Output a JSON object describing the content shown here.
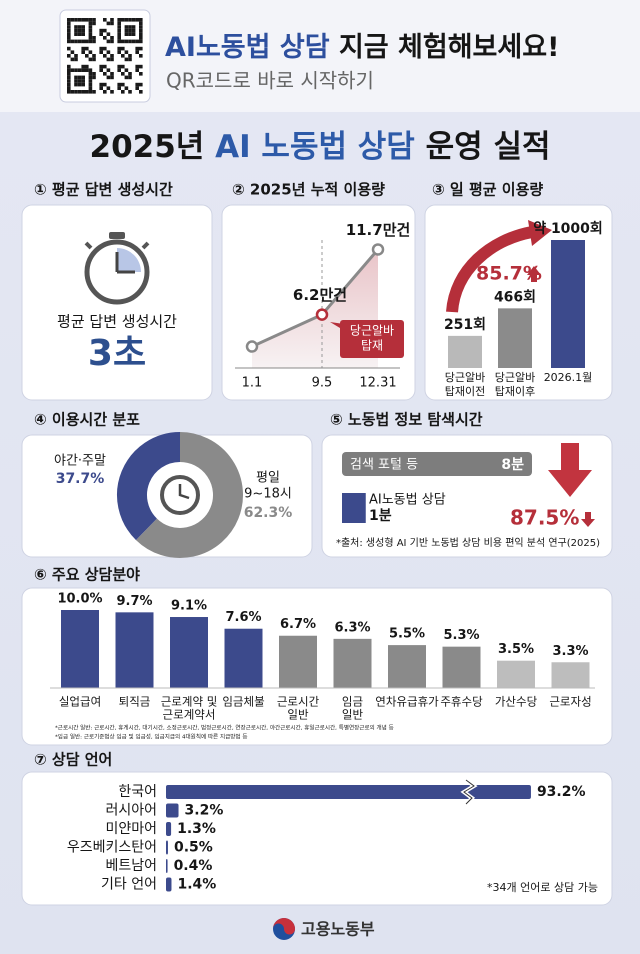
{
  "header": {
    "title_highlight": "AI노동법 상담",
    "title_rest": "지금 체험해보세요!",
    "subtitle": "QR코드로 바로 시작하기"
  },
  "title": {
    "year": "2025년",
    "highlight": "AI 노동법 상담",
    "rest": "운영 실적"
  },
  "response_time": {
    "heading": "① 평균 답변 생성시간",
    "label": "평균 답변 생성시간",
    "value": "3초"
  },
  "cumulative": {
    "heading": "② 2025년 누적 이용량",
    "x": [
      "1.1",
      "9.5",
      "12.31"
    ],
    "values": [
      3.5,
      6.2,
      11.7
    ],
    "value_labels": [
      null,
      "6.2만건",
      "11.7만건"
    ],
    "ylim": [
      0,
      12.5
    ],
    "annotation": [
      "당근알바",
      "탑재"
    ]
  },
  "daily": {
    "heading": "③ 일 평균 이용량",
    "categories": [
      [
        "당근알바",
        "탑재이전"
      ],
      [
        "당근알바",
        "탑재이후"
      ],
      [
        "2026.1월"
      ]
    ],
    "values": [
      251,
      466,
      1000
    ],
    "value_labels": [
      "251회",
      "466회",
      "약 1000회"
    ],
    "colors": [
      "#b9b9b9",
      "#8b8b8b",
      "#3c4a8c"
    ],
    "ylim": [
      0,
      1000
    ],
    "growth": "85.7%"
  },
  "time_dist": {
    "heading": "④ 이용시간 분포",
    "slices": [
      {
        "name": [
          "야간·주말"
        ],
        "value": 37.7,
        "value_label": "37.7%",
        "color": "#3c4a8c"
      },
      {
        "name": [
          "평일",
          "9~18시"
        ],
        "value": 62.3,
        "value_label": "62.3%",
        "color": "#8a8a8a"
      }
    ]
  },
  "search": {
    "heading": "⑤ 노동법 정보 탐색시간",
    "bars": [
      {
        "name": "검색 포털 등",
        "value": 8,
        "value_label": "8분",
        "color": "#7d7d7d"
      },
      {
        "name": "AI노동법 상담",
        "value": 1,
        "value_label": "1분",
        "color": "#3c4a8c"
      }
    ],
    "xlim": [
      0,
      8
    ],
    "reduction": "87.5%",
    "source": "*출처: 생성형 AI 기반 노동법 상담 비용 편익 분석 연구(2025)"
  },
  "fields": {
    "heading": "⑥ 주요 상담분야",
    "categories": [
      [
        "실업급여"
      ],
      [
        "퇴직금"
      ],
      [
        "근로계약 및",
        "근로계약서"
      ],
      [
        "임금체불"
      ],
      [
        "근로시간",
        "일반"
      ],
      [
        "임금",
        "일반"
      ],
      [
        "연차유급휴가"
      ],
      [
        "주휴수당"
      ],
      [
        "가산수당"
      ],
      [
        "근로자성"
      ]
    ],
    "values": [
      10.0,
      9.7,
      9.1,
      7.6,
      6.7,
      6.3,
      5.5,
      5.3,
      3.5,
      3.3
    ],
    "value_labels": [
      "10.0%",
      "9.7%",
      "9.1%",
      "7.6%",
      "6.7%",
      "6.3%",
      "5.5%",
      "5.3%",
      "3.5%",
      "3.3%"
    ],
    "colors": [
      "#3c4a8c",
      "#3c4a8c",
      "#3c4a8c",
      "#3c4a8c",
      "#8a8a8a",
      "#8a8a8a",
      "#8a8a8a",
      "#8a8a8a",
      "#bdbdbd",
      "#bdbdbd"
    ],
    "ylim": [
      0,
      10
    ],
    "notes": [
      "*근로시간 일반: 근로시간, 휴게시간, 대기시간, 소정근로시간, 법정근로시간, 연장근로시간, 야간근로시간, 휴일근로시간, 특별연장근로의 개념 등",
      "*임금 일반: 근로기준법상 임금 및 임금성, 임금지급의 4대원칙에 따른 지급방법 등"
    ]
  },
  "languages": {
    "heading": "⑦ 상담 언어",
    "categories": [
      "한국어",
      "러시아어",
      "미얀마어",
      "우즈베키스탄어",
      "베트남어",
      "기타 언어"
    ],
    "values": [
      93.2,
      3.2,
      1.3,
      0.5,
      0.4,
      1.4
    ],
    "value_labels": [
      "93.2%",
      "3.2%",
      "1.3%",
      "0.5%",
      "0.4%",
      "1.4%"
    ],
    "color": "#3c4a8c",
    "xlim": [
      0,
      95
    ],
    "note": "*34개 언어로 상담 가능"
  },
  "footer": {
    "ministry": "고용노동부"
  }
}
